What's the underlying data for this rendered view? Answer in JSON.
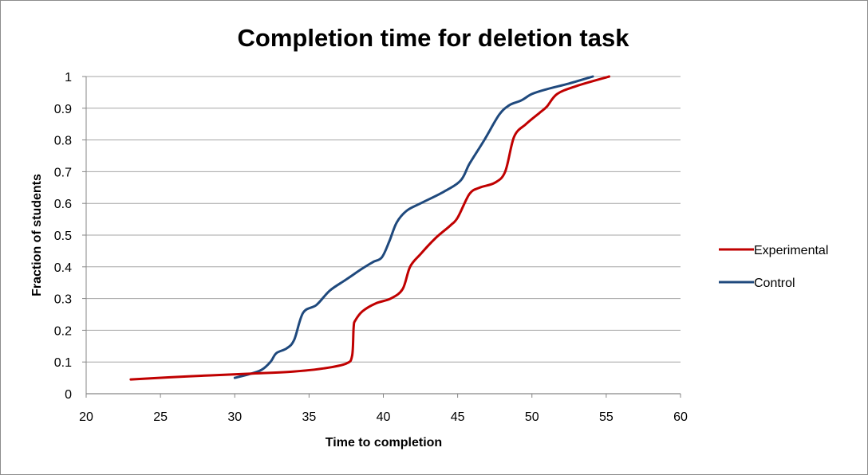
{
  "chart_data": {
    "type": "line",
    "title": "Completion time for deletion task",
    "xlabel": "Time to completion",
    "ylabel": "Fraction of students",
    "xlim": [
      20,
      60
    ],
    "ylim": [
      0,
      1
    ],
    "x_ticks": [
      "20",
      "25",
      "30",
      "35",
      "40",
      "45",
      "50",
      "55",
      "60"
    ],
    "y_ticks": [
      "0",
      "0.1",
      "0.2",
      "0.3",
      "0.4",
      "0.5",
      "0.6",
      "0.7",
      "0.8",
      "0.9",
      "1"
    ],
    "grid": "horizontal",
    "legend_position": "right",
    "series": [
      {
        "name": "Experimental",
        "color": "#c00000",
        "points": [
          [
            23,
            0.045
          ],
          [
            27,
            0.055
          ],
          [
            31,
            0.063
          ],
          [
            34,
            0.07
          ],
          [
            36,
            0.08
          ],
          [
            37.5,
            0.095
          ],
          [
            37.9,
            0.12
          ],
          [
            38.0,
            0.21
          ],
          [
            38.1,
            0.23
          ],
          [
            38.6,
            0.26
          ],
          [
            39.5,
            0.285
          ],
          [
            40.5,
            0.3
          ],
          [
            41.3,
            0.33
          ],
          [
            41.8,
            0.4
          ],
          [
            42.5,
            0.44
          ],
          [
            43.5,
            0.49
          ],
          [
            44.5,
            0.53
          ],
          [
            45.0,
            0.555
          ],
          [
            45.8,
            0.63
          ],
          [
            46.5,
            0.65
          ],
          [
            47.5,
            0.665
          ],
          [
            48.2,
            0.7
          ],
          [
            48.8,
            0.81
          ],
          [
            49.6,
            0.85
          ],
          [
            50.5,
            0.885
          ],
          [
            51.0,
            0.905
          ],
          [
            51.7,
            0.945
          ],
          [
            53.0,
            0.97
          ],
          [
            55.2,
            1.0
          ]
        ]
      },
      {
        "name": "Control",
        "color": "#1f497d",
        "points": [
          [
            30,
            0.05
          ],
          [
            31,
            0.062
          ],
          [
            31.8,
            0.075
          ],
          [
            32.4,
            0.1
          ],
          [
            32.8,
            0.128
          ],
          [
            33.5,
            0.143
          ],
          [
            34.0,
            0.17
          ],
          [
            34.6,
            0.255
          ],
          [
            35.5,
            0.28
          ],
          [
            36.4,
            0.325
          ],
          [
            37.5,
            0.36
          ],
          [
            38.6,
            0.395
          ],
          [
            39.3,
            0.415
          ],
          [
            39.9,
            0.43
          ],
          [
            40.4,
            0.48
          ],
          [
            40.9,
            0.54
          ],
          [
            41.6,
            0.578
          ],
          [
            42.5,
            0.6
          ],
          [
            44.0,
            0.635
          ],
          [
            45.2,
            0.672
          ],
          [
            45.8,
            0.725
          ],
          [
            46.8,
            0.8
          ],
          [
            47.8,
            0.88
          ],
          [
            48.5,
            0.91
          ],
          [
            49.3,
            0.925
          ],
          [
            50.0,
            0.945
          ],
          [
            51.0,
            0.96
          ],
          [
            52.5,
            0.978
          ],
          [
            54.1,
            1.0
          ]
        ]
      }
    ]
  }
}
